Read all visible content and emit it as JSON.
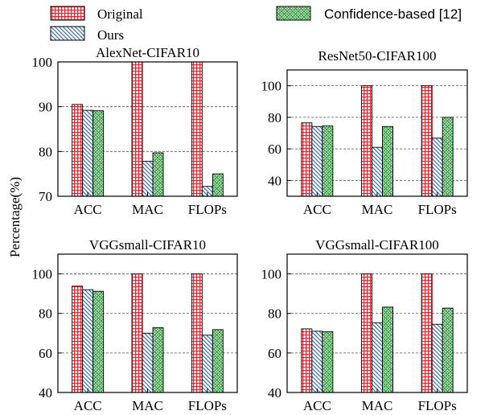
{
  "legend": {
    "items": [
      {
        "name": "Original",
        "pattern": "grid-red"
      },
      {
        "name": "Ours",
        "pattern": "diag-blue"
      },
      {
        "name": "Confidence-based [12]",
        "pattern": "cross-green"
      }
    ]
  },
  "ylabel": "Percentage(%)",
  "colors": {
    "original": "#e8202a",
    "ours": "#3d6fb6",
    "confidence": "#2e9a3a"
  },
  "chart_data": [
    {
      "type": "bar",
      "title": "AlexNet-CIFAR10",
      "categories": [
        "ACC",
        "MAC",
        "FLOPs"
      ],
      "series": [
        {
          "name": "Original",
          "values": [
            90.5,
            100,
            100
          ]
        },
        {
          "name": "Ours",
          "values": [
            89.2,
            77.8,
            72.2
          ]
        },
        {
          "name": "Confidence-based [12]",
          "values": [
            89.1,
            79.7,
            75.0
          ]
        }
      ],
      "ylim": [
        70,
        100
      ],
      "yticks": [
        70,
        80,
        90,
        100
      ],
      "grid": true
    },
    {
      "type": "bar",
      "title": "ResNet50-CIFAR100",
      "categories": [
        "ACC",
        "MAC",
        "FLOPs"
      ],
      "series": [
        {
          "name": "Original",
          "values": [
            76.5,
            100,
            100
          ]
        },
        {
          "name": "Ours",
          "values": [
            74.2,
            61.0,
            66.8
          ]
        },
        {
          "name": "Confidence-based [12]",
          "values": [
            74.5,
            74.2,
            80.0
          ]
        }
      ],
      "ylim": [
        30,
        110
      ],
      "yticks": [
        40,
        60,
        80,
        100
      ],
      "grid": true
    },
    {
      "type": "bar",
      "title": "VGGsmall-CIFAR10",
      "categories": [
        "ACC",
        "MAC",
        "FLOPs"
      ],
      "series": [
        {
          "name": "Original",
          "values": [
            93.8,
            100,
            100
          ]
        },
        {
          "name": "Ours",
          "values": [
            92.0,
            70.0,
            69.0
          ]
        },
        {
          "name": "Confidence-based [12]",
          "values": [
            91.2,
            72.8,
            71.8
          ]
        }
      ],
      "ylim": [
        40,
        110
      ],
      "yticks": [
        40,
        60,
        80,
        100
      ],
      "grid": true
    },
    {
      "type": "bar",
      "title": "VGGsmall-CIFAR100",
      "categories": [
        "ACC",
        "MAC",
        "FLOPs"
      ],
      "series": [
        {
          "name": "Original",
          "values": [
            72.2,
            100,
            100
          ]
        },
        {
          "name": "Ours",
          "values": [
            71.0,
            75.3,
            74.5
          ]
        },
        {
          "name": "Confidence-based [12]",
          "values": [
            70.7,
            83.2,
            82.7
          ]
        }
      ],
      "ylim": [
        40,
        110
      ],
      "yticks": [
        40,
        60,
        80,
        100
      ],
      "grid": true
    }
  ]
}
